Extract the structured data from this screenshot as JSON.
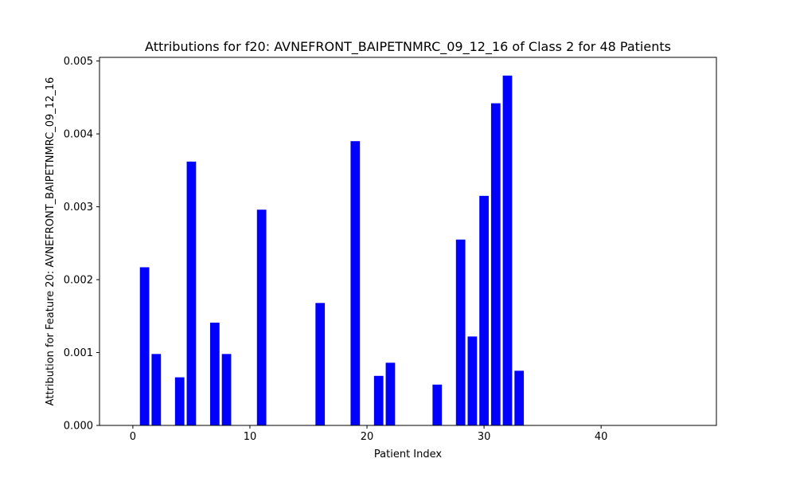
{
  "chart_data": {
    "type": "bar",
    "title": "Attributions for f20: AVNEFRONT_BAIPETNMRC_09_12_16 of Class 2 for 48 Patients",
    "xlabel": "Patient Index",
    "ylabel": "Attribution for Feature 20: AVNEFRONT_BAIPETNMRC_09_12_16",
    "xlim": [
      -2.85,
      49.85
    ],
    "ylim": [
      0,
      0.00505
    ],
    "x_ticks": [
      0,
      10,
      20,
      30,
      40
    ],
    "y_ticks": [
      0.0,
      0.001,
      0.002,
      0.003,
      0.004,
      0.005
    ],
    "y_tick_labels": [
      "0.000",
      "0.001",
      "0.002",
      "0.003",
      "0.004",
      "0.005"
    ],
    "bar_width": 0.8,
    "grid": false,
    "bar_color": "#0000ff",
    "series": [
      {
        "x": [
          0,
          1,
          2,
          3,
          4,
          5,
          6,
          7,
          8,
          9,
          10,
          11,
          12,
          13,
          14,
          15,
          16,
          17,
          18,
          19,
          20,
          21,
          22,
          23,
          24,
          25,
          26,
          27,
          28,
          29,
          30,
          31,
          32,
          33,
          34,
          35,
          36,
          37,
          38,
          39,
          40,
          41,
          42,
          43,
          44,
          45,
          46,
          47
        ],
        "values": [
          0,
          0.00217,
          0.00098,
          0,
          0.00066,
          0.00362,
          0,
          0.00141,
          0.00098,
          0,
          0,
          0.00296,
          0,
          0,
          0,
          0,
          0.00168,
          0,
          0,
          0.0039,
          0,
          0.00068,
          0.00086,
          0,
          0,
          0,
          0.00056,
          0,
          0.00255,
          0.00122,
          0.00315,
          0.00442,
          0.0048,
          0.00075,
          0,
          0,
          0,
          0,
          0,
          0,
          0,
          0,
          0,
          0,
          0,
          0,
          0,
          0
        ]
      }
    ]
  }
}
